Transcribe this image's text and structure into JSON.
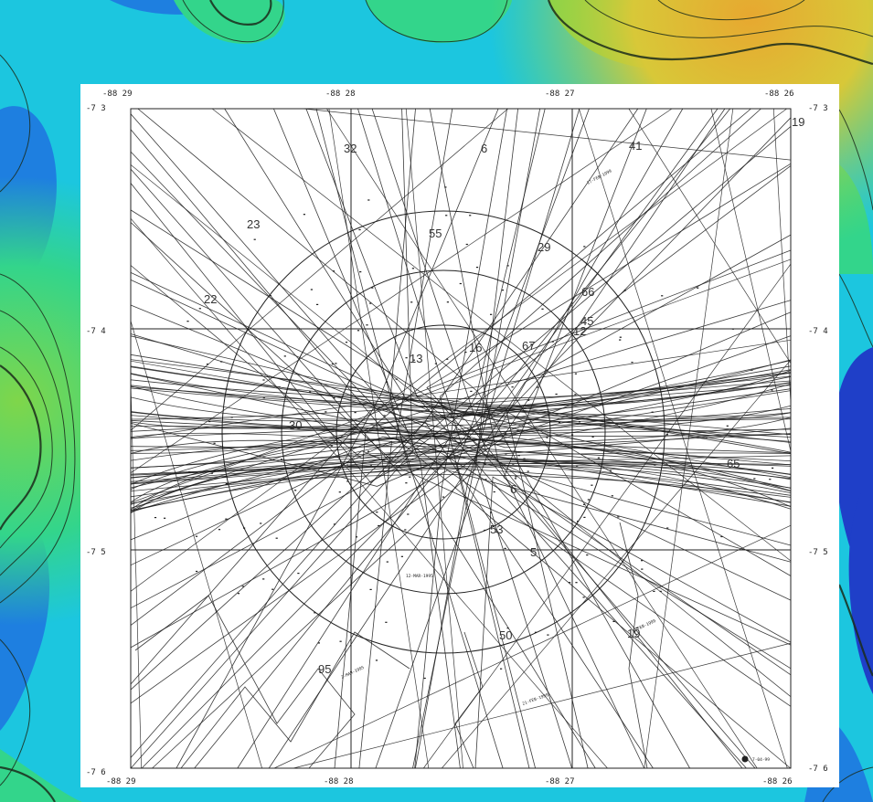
{
  "map": {
    "colors": {
      "deep": "#1f3fc8",
      "mid_deep": "#1e7fe0",
      "mid": "#1cc6df",
      "shallow": "#33d58b",
      "shoal": "#7fd64a",
      "crest": "#d8c838",
      "peak": "#e7a830",
      "contour": "#1b2b1b",
      "track": "#1a1a1a",
      "panel": "#ffffff"
    },
    "coordinates": {
      "top_lon_labels": [
        "-88 29",
        "-88 28",
        "-88 27",
        "-88 26"
      ],
      "bottom_lon_labels": [
        "-88 29",
        "-88 28",
        "-88 27",
        "-88 26"
      ],
      "left_lat_labels": [
        "-7 3",
        "-7 4",
        "-7 5",
        "-7 6"
      ],
      "right_lat_labels": [
        "-7 3",
        "-7 4",
        "-7 5",
        "-7 6"
      ]
    },
    "track_numbers": [
      "19",
      "41",
      "6",
      "32",
      "23",
      "22",
      "55",
      "29",
      "66",
      "45",
      "16",
      "67",
      "13",
      "50",
      "19",
      "95",
      "65",
      "6",
      "53",
      "5",
      "12",
      "30"
    ],
    "date_annotations": [
      "17-FEB-1999",
      "12-MAR-1995",
      "21-FEB-1999",
      "1-FEB-1999",
      "2-MAR-1995"
    ],
    "corner_note": "7-04-99"
  }
}
